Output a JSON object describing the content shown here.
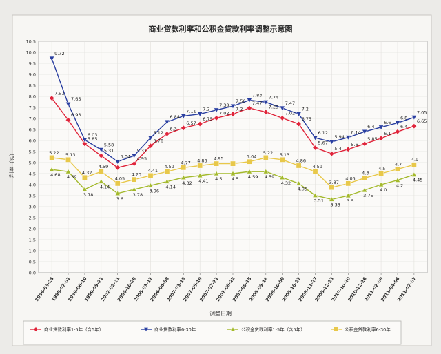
{
  "chart_data": {
    "type": "line",
    "title": "商业贷款利率和公积金贷款利率调整示意图",
    "xlabel": "调整日期",
    "ylabel": "利率（%）",
    "ylim": [
      0,
      10.5
    ],
    "y_ticks": [
      "0.0",
      "0.5",
      "1.0",
      "1.5",
      "2.0",
      "2.5",
      "3.0",
      "3.5",
      "4.0",
      "4.5",
      "5.0",
      "5.5",
      "6.0",
      "6.5",
      "7.0",
      "7.5",
      "8.0",
      "8.5",
      "9.0",
      "9.5",
      "10.0",
      "10.5"
    ],
    "grid": true,
    "legend_position": "bottom",
    "categories": [
      "1996-03-25",
      "1998-07-01",
      "1999-06-10",
      "1999-09-21",
      "2002-02-21",
      "2004-10-29",
      "2005-03-17",
      "2006-04-08",
      "2007-03-18",
      "2007-05-19",
      "2007-07-21",
      "2007-08-22",
      "2007-09-15",
      "2008-09-16",
      "2008-10-09",
      "2008-10-27",
      "2008-11-27",
      "2008-12-23",
      "2010-10-20",
      "2010-12-26",
      "2011-02-09",
      "2011-04-06",
      "2011-07-07"
    ],
    "series": [
      {
        "name": "商业贷款利率1-5年（含5年）",
        "color": "#e0243a",
        "marker": "diamond",
        "values": [
          7.92,
          6.93,
          5.85,
          5.31,
          4.77,
          4.95,
          5.76,
          6.3,
          6.57,
          6.75,
          7.02,
          7.2,
          7.47,
          7.29,
          7.02,
          6.75,
          5.67,
          5.4,
          5.6,
          5.85,
          6.1,
          6.4,
          6.65
        ],
        "labels": [
          "7.92",
          "6.93",
          "5.85",
          "5.31",
          "",
          "4.95",
          "5.76",
          "6.3",
          "6.57",
          "6.75",
          "7.02",
          "7.2",
          "7.47",
          "7.29",
          "7.02",
          "6.75",
          "5.67",
          "5.4",
          "5.6",
          "5.85",
          "6.1",
          "6.4",
          "6.65"
        ]
      },
      {
        "name": "商业贷款利率6-30年",
        "color": "#2a3fa0",
        "marker": "triangle-down",
        "values": [
          9.72,
          7.65,
          6.03,
          5.58,
          5.04,
          5.31,
          6.12,
          6.84,
          7.11,
          7.2,
          7.38,
          7.56,
          7.83,
          7.74,
          7.47,
          7.2,
          6.12,
          5.94,
          6.14,
          6.4,
          6.6,
          6.8,
          7.05
        ],
        "labels": [
          "9.72",
          "7.65",
          "6.03",
          "5.58",
          "5.04",
          "5.31",
          "6.12",
          "6.84",
          "7.11",
          "7.2",
          "7.38",
          "7.56",
          "7.83",
          "7.74",
          "7.47",
          "7.2",
          "6.12",
          "5.94",
          "6.14",
          "6.4",
          "6.6",
          "6.8",
          "7.05"
        ]
      },
      {
        "name": "公积金贷款利率1-5年（含5年）",
        "color": "#a3b92b",
        "marker": "triangle-up",
        "values": [
          4.68,
          4.59,
          3.78,
          4.14,
          3.6,
          3.78,
          3.96,
          4.14,
          4.32,
          4.41,
          4.5,
          4.5,
          4.59,
          4.59,
          4.32,
          4.05,
          3.51,
          3.33,
          3.5,
          3.75,
          4.0,
          4.2,
          4.45
        ],
        "labels": [
          "4.68",
          "4.59",
          "3.78",
          "4.14",
          "3.6",
          "3.78",
          "3.96",
          "4.14",
          "4.32",
          "4.41",
          "4.5",
          "4.5",
          "4.59",
          "4.59",
          "4.32",
          "4.05",
          "3.51",
          "3.33",
          "3.5",
          "3.75",
          "4.0",
          "4.2",
          "4.45"
        ]
      },
      {
        "name": "公积金贷款利率6-30年",
        "color": "#e8c84a",
        "marker": "square",
        "values": [
          5.22,
          5.13,
          4.32,
          4.59,
          4.05,
          4.23,
          4.41,
          4.59,
          4.77,
          4.86,
          4.95,
          4.95,
          5.04,
          5.22,
          5.13,
          4.86,
          4.59,
          3.87,
          4.05,
          4.3,
          4.5,
          4.7,
          4.9
        ],
        "labels": [
          "5.22",
          "5.13",
          "4.32",
          "4.59",
          "4.05",
          "4.23",
          "4.41",
          "4.59",
          "4.77",
          "4.86",
          "4.95",
          "",
          "5.04",
          "5.22",
          "5.13",
          "4.86",
          "4.59",
          "3.87",
          "4.05",
          "4.3",
          "4.5",
          "4.7",
          "4.9"
        ]
      }
    ]
  }
}
